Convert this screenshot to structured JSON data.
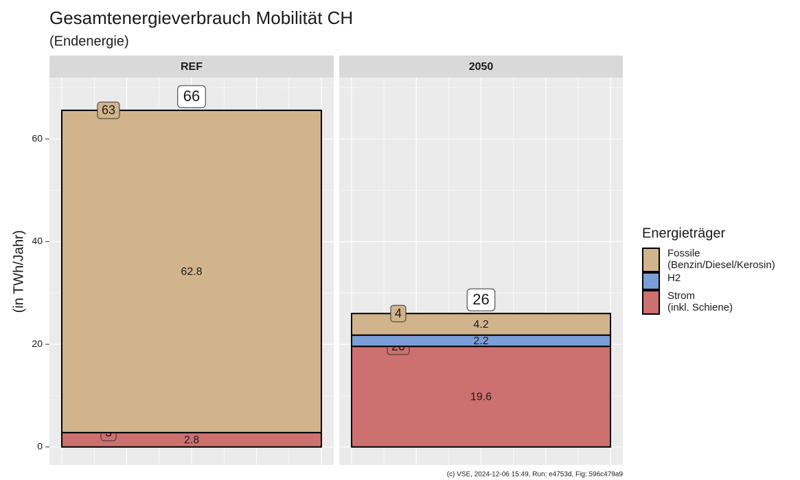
{
  "chart_data": {
    "type": "stacked_bar",
    "title": "Gesamtenergieverbrauch Mobilität CH",
    "subtitle": "(Endenergie)",
    "y_label": "(in TWh/Jahr)",
    "caption": "(c) VSE, 2024-12-06 15:49, Run: e4753d, Fig: 596c479a9",
    "legend_title": "Energieträger",
    "categories": [
      "REF",
      "2050"
    ],
    "totals": [
      66,
      26
    ],
    "series": [
      {
        "name": "Strom\n(inkl. Schiene)",
        "color": "#cd7070",
        "values": [
          2.8,
          19.6
        ],
        "value_labels": [
          "3",
          "20"
        ]
      },
      {
        "name": "H2",
        "color": "#7b9ed9",
        "values": [
          null,
          2.2
        ],
        "value_labels": [
          null,
          null
        ]
      },
      {
        "name": "Fossile\n(Benzin/Diesel/Kerosin)",
        "color": "#d2b48c",
        "values": [
          62.8,
          4.2
        ],
        "value_labels": [
          "63",
          "4"
        ]
      }
    ],
    "ylim": [
      -3.5,
      72
    ],
    "yticks": [
      0,
      20,
      40,
      60
    ],
    "grid": true,
    "legend": "right"
  }
}
